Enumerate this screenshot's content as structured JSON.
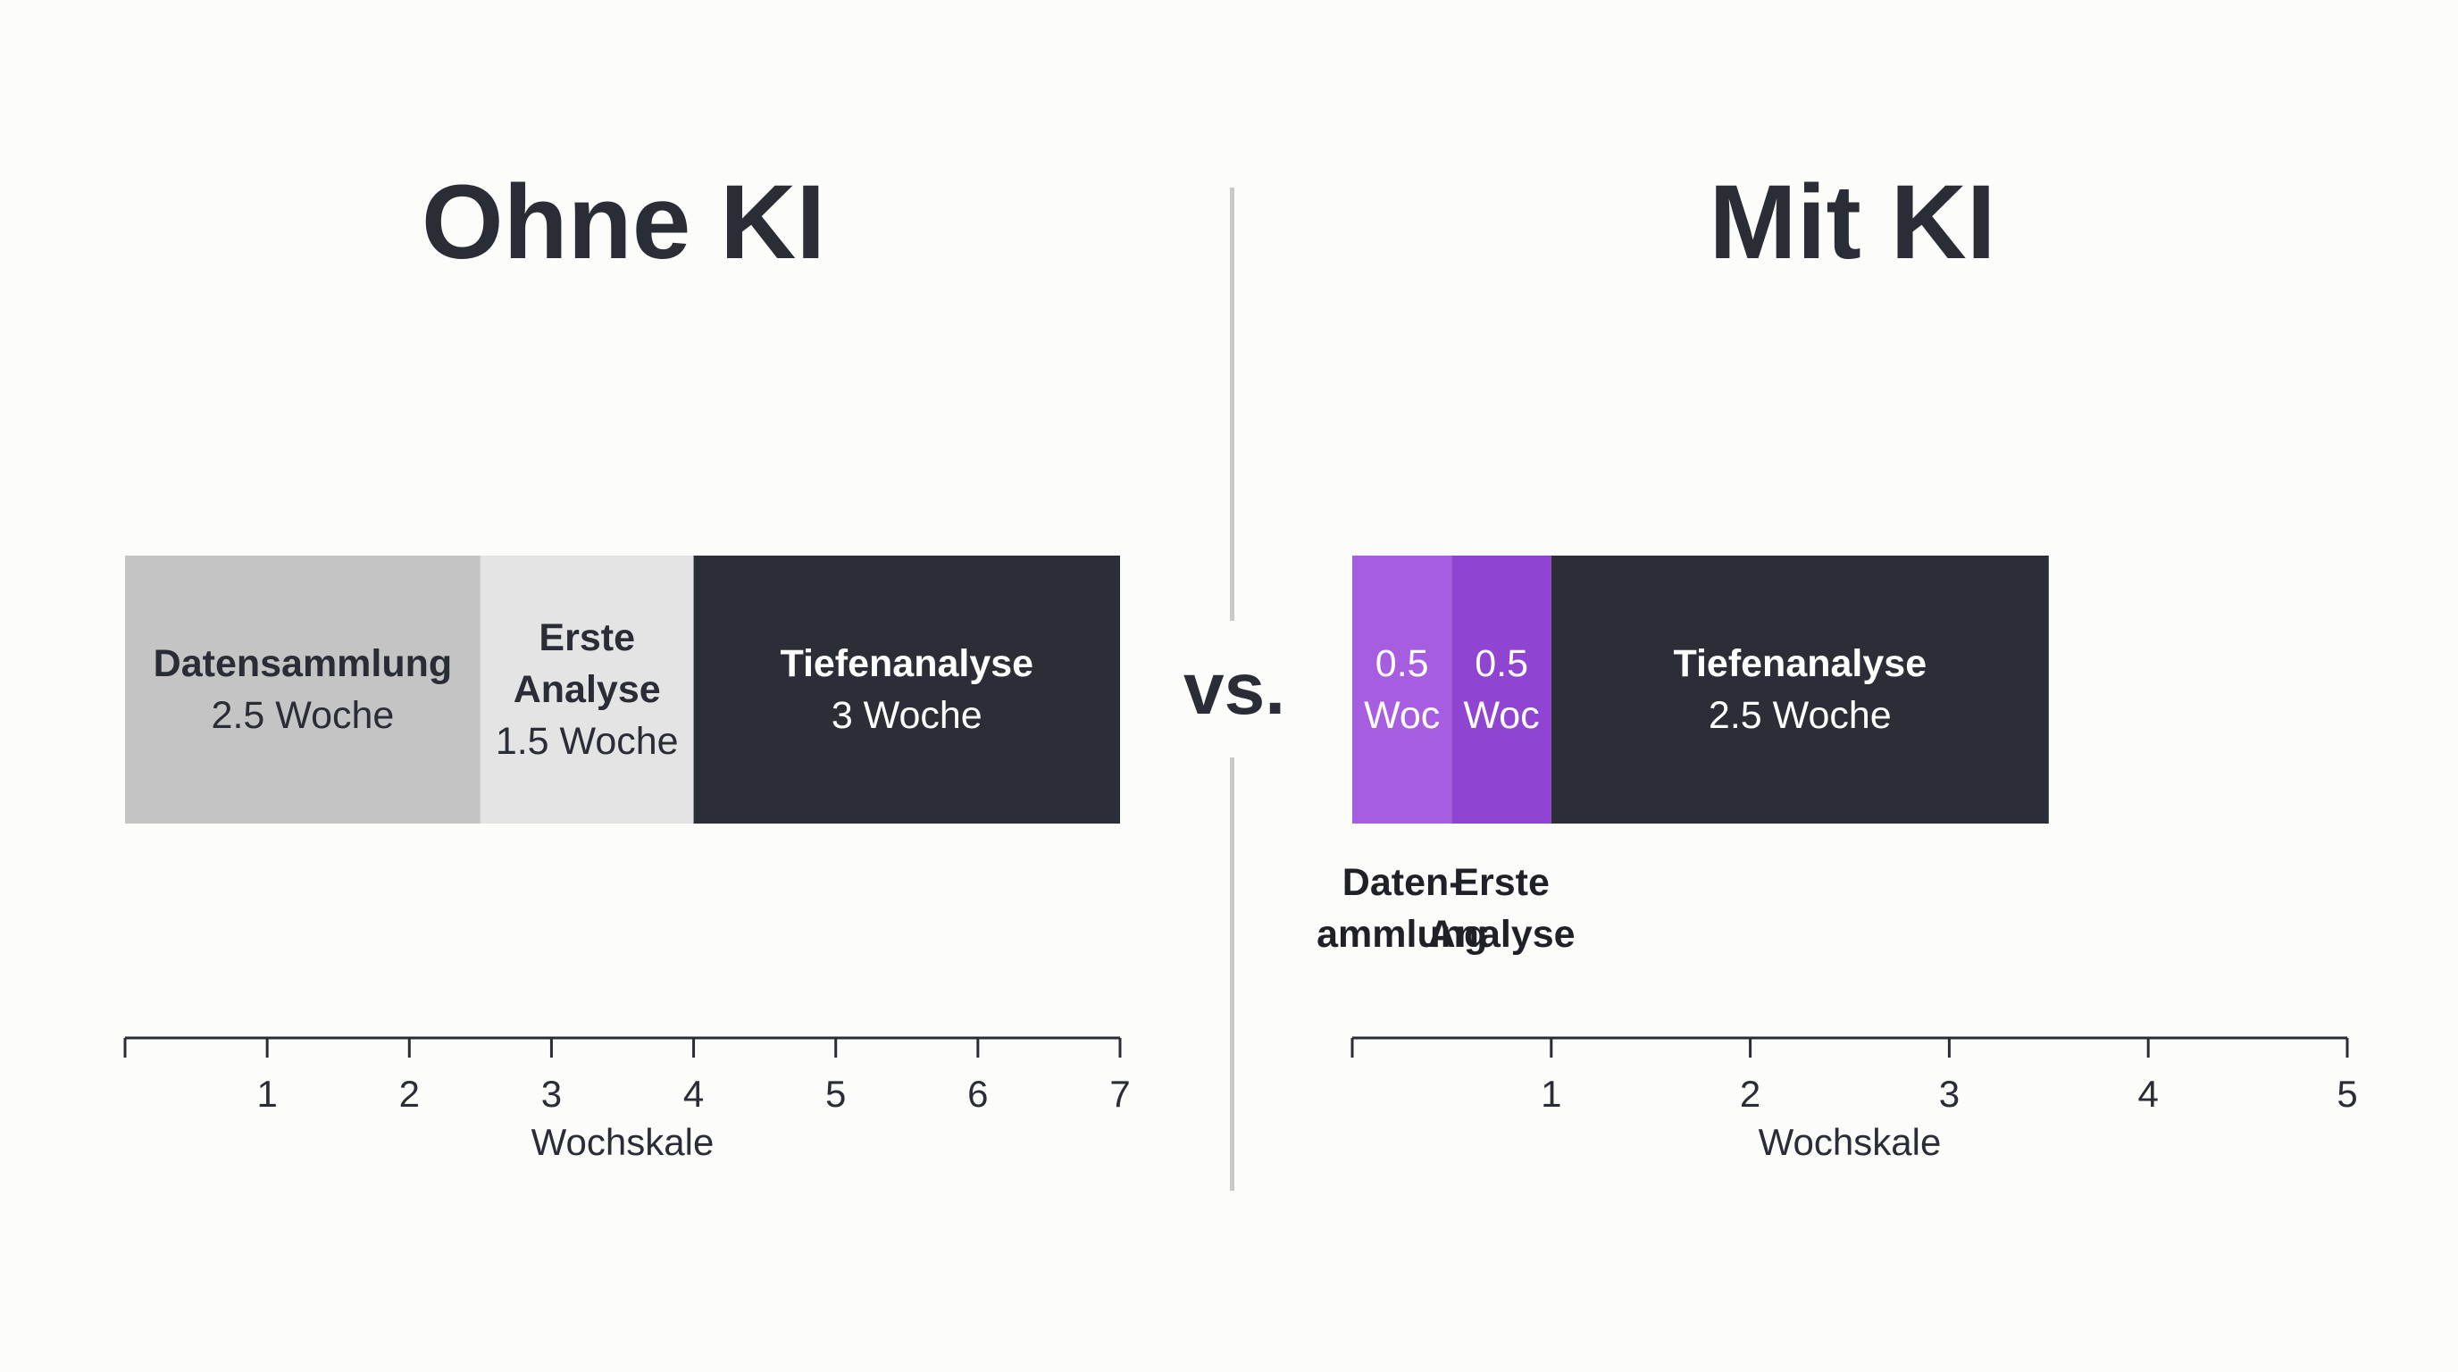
{
  "vs_label": "vs.",
  "chart_data": [
    {
      "type": "bar",
      "orientation": "horizontal-stacked",
      "title": "Ohne KI",
      "xlabel": "Wochskale",
      "xlim": [
        0,
        7
      ],
      "xticks": [
        1,
        2,
        3,
        4,
        5,
        6,
        7
      ],
      "segments": [
        {
          "name": "Datensammlung",
          "value": 2.5,
          "value_label": "2.5 Woche",
          "color": "#c4c4c4",
          "text_color": "#2a2d35"
        },
        {
          "name": "Erste Analyse",
          "value": 1.5,
          "value_label": "1.5 Woche",
          "color": "#e4e4e4",
          "text_color": "#2a2d35"
        },
        {
          "name": "Tiefenanalyse",
          "value": 3,
          "value_label": "3 Woche",
          "color": "#2b2e36",
          "text_color": "#ffffff"
        }
      ]
    },
    {
      "type": "bar",
      "orientation": "horizontal-stacked",
      "title": "Mit KI",
      "xlabel": "Wochskale",
      "xlim": [
        0,
        5
      ],
      "xticks": [
        1,
        2,
        3,
        4,
        5
      ],
      "segments": [
        {
          "name": "Daten- ammlung",
          "value": 0.5,
          "value_label": "0.5 Woc",
          "color": "#a75ddf",
          "text_color": "#ffffff"
        },
        {
          "name": "Erste Analyse",
          "value": 0.5,
          "value_label": "0.5 Woc",
          "color": "#8f45d2",
          "text_color": "#ffffff"
        },
        {
          "name": "Tiefenanalyse",
          "value": 2.5,
          "value_label": "2.5 Woche",
          "color": "#2b2e36",
          "text_color": "#ffffff"
        }
      ]
    }
  ]
}
